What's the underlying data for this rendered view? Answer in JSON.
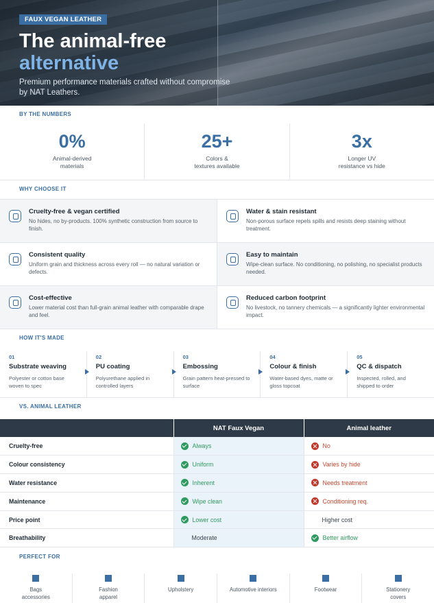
{
  "hero": {
    "tag": "FAUX VEGAN LEATHER",
    "title_line1": "The animal-free",
    "title_line2": "alternative",
    "subtitle": "Premium performance materials crafted without compromise by NAT Leathers."
  },
  "sections": {
    "numbers": "BY THE NUMBERS",
    "why": "WHY CHOOSE IT",
    "how": "HOW IT'S MADE",
    "vs": "VS. ANIMAL LEATHER",
    "perfect": "PERFECT FOR"
  },
  "stats": [
    {
      "value": "0%",
      "label_line1": "Animal-derived",
      "label_line2": "materials"
    },
    {
      "value": "25+",
      "label_line1": "Colors &",
      "label_line2": "textures available"
    },
    {
      "value": "3x",
      "label_line1": "Longer UV",
      "label_line2": "resistance vs hide"
    }
  ],
  "features": [
    {
      "title": "Cruelty-free & vegan certified",
      "desc": "No hides, no by-products. 100% synthetic construction from source to finish."
    },
    {
      "title": "Water & stain resistant",
      "desc": "Non-porous surface repels spills and resists deep staining without treatment."
    },
    {
      "title": "Consistent quality",
      "desc": "Uniform grain and thickness across every roll — no natural variation or defects."
    },
    {
      "title": "Easy to maintain",
      "desc": "Wipe-clean surface. No conditioning, no polishing, no specialist products needed."
    },
    {
      "title": "Cost-effective",
      "desc": "Lower material cost than full-grain animal leather with comparable drape and feel."
    },
    {
      "title": "Reduced carbon footprint",
      "desc": "No livestock, no tannery chemicals — a significantly lighter environmental impact."
    }
  ],
  "steps": [
    {
      "num": "01",
      "title": "Substrate weaving",
      "desc_line1": "Polyester or cotton base",
      "desc_line2": "woven to spec"
    },
    {
      "num": "02",
      "title": "PU coating",
      "desc_line1": "Polyurethane applied in",
      "desc_line2": "controlled layers"
    },
    {
      "num": "03",
      "title": "Embossing",
      "desc_line1": "Grain pattern heat-pressed to",
      "desc_line2": "surface"
    },
    {
      "num": "04",
      "title": "Colour & finish",
      "desc_line1": "Water-based dyes, matte or",
      "desc_line2": "gloss topcoat"
    },
    {
      "num": "05",
      "title": "QC & dispatch",
      "desc_line1": "Inspected, rolled, and",
      "desc_line2": "shipped to order"
    }
  ],
  "comparison": {
    "col_vegan": "NAT Faux Vegan",
    "col_animal": "Animal leather",
    "rows": [
      {
        "attr": "Cruelty-free",
        "vegan": "Always",
        "vegan_icon": "check",
        "animal": "No",
        "animal_icon": "cross"
      },
      {
        "attr": "Colour consistency",
        "vegan": "Uniform",
        "vegan_icon": "check",
        "animal": "Varies by hide",
        "animal_icon": "cross"
      },
      {
        "attr": "Water resistance",
        "vegan": "Inherent",
        "vegan_icon": "check",
        "animal": "Needs treatment",
        "animal_icon": "cross"
      },
      {
        "attr": "Maintenance",
        "vegan": "Wipe clean",
        "vegan_icon": "check",
        "animal": "Conditioning req.",
        "animal_icon": "cross"
      },
      {
        "attr": "Price point",
        "vegan": "Lower cost",
        "vegan_icon": "check",
        "animal": "Higher cost",
        "animal_icon": "none"
      },
      {
        "attr": "Breathability",
        "vegan": "Moderate",
        "vegan_icon": "none",
        "animal": "Better airflow",
        "animal_icon": "check"
      }
    ]
  },
  "uses": [
    {
      "line1": "Bags",
      "line2": "accessories"
    },
    {
      "line1": "Fashion",
      "line2": "apparel"
    },
    {
      "line1": "Upholstery",
      "line2": ""
    },
    {
      "line1": "Automotive interiors",
      "line2": ""
    },
    {
      "line1": "Footwear",
      "line2": ""
    },
    {
      "line1": "Stationery",
      "line2": "covers"
    }
  ],
  "colors": {
    "accent": "#3b6fa3",
    "dark": "#2e3a47",
    "ok": "#2f9a5f",
    "bad": "#c8462e"
  }
}
